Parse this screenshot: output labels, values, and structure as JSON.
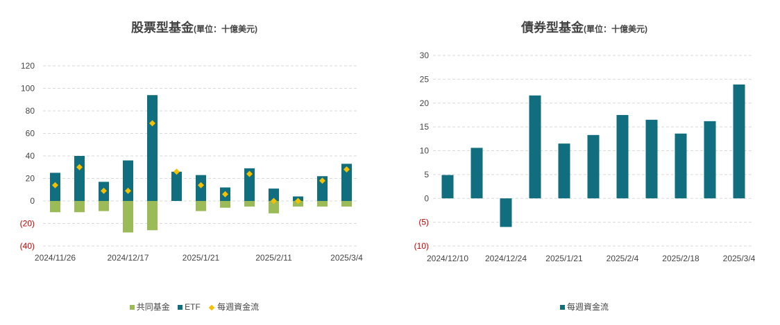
{
  "colors": {
    "mutual_fund": "#9bbb59",
    "etf": "#106e7f",
    "weekly_flow": "#f5c000",
    "grid": "#d9d9d9",
    "negative_tick": "#c00000"
  },
  "chart_data": [
    {
      "type": "bar",
      "title": "股票型基金",
      "unit": "(單位：十億美元)",
      "xlabel": "",
      "ylabel": "",
      "ylim": [
        -40,
        120
      ],
      "yticks": [
        -40,
        -20,
        0,
        20,
        40,
        60,
        80,
        100,
        120
      ],
      "ytick_labels": [
        "(40)",
        "(20)",
        "0",
        "20",
        "40",
        "60",
        "80",
        "100",
        "120"
      ],
      "xtick_labels": [
        "2024/11/26",
        "2024/12/17",
        "2025/1/21",
        "2025/2/11",
        "2025/3/4"
      ],
      "xtick_indices": [
        0,
        3,
        6,
        9,
        12
      ],
      "grid": true,
      "legend_position": "bottom",
      "series": [
        {
          "name": "共同基金",
          "kind": "bar",
          "values": [
            -10,
            -10,
            -9,
            -28,
            -26,
            1,
            -9,
            -6,
            -5,
            -11,
            -5,
            -5,
            -5
          ]
        },
        {
          "name": "ETF",
          "kind": "bar",
          "values": [
            25,
            40,
            17,
            36,
            94,
            26,
            23,
            12,
            29,
            11,
            4,
            22,
            33
          ]
        },
        {
          "name": "每週資金流",
          "kind": "diamond",
          "values": [
            14,
            30,
            9,
            9,
            69,
            26,
            14,
            6,
            24,
            0,
            0,
            18,
            28
          ]
        }
      ]
    },
    {
      "type": "bar",
      "title": "債券型基金",
      "unit": "(單位：十億美元)",
      "xlabel": "",
      "ylabel": "",
      "ylim": [
        -10,
        30
      ],
      "yticks": [
        -10,
        -5,
        0,
        5,
        10,
        15,
        20,
        25,
        30
      ],
      "ytick_labels": [
        "(10)",
        "(5)",
        "0",
        "5",
        "10",
        "15",
        "20",
        "25",
        "30"
      ],
      "xtick_labels": [
        "2024/12/10",
        "2024/12/24",
        "2025/1/21",
        "2025/2/4",
        "2025/2/18",
        "2025/3/4"
      ],
      "xtick_indices": [
        0,
        2,
        4,
        6,
        8,
        10
      ],
      "grid": true,
      "legend_position": "bottom",
      "series": [
        {
          "name": "每週資金流",
          "kind": "bar",
          "values": [
            4.9,
            10.6,
            -6.0,
            21.6,
            11.5,
            13.3,
            17.5,
            16.5,
            13.6,
            16.2,
            23.9
          ]
        }
      ]
    }
  ]
}
